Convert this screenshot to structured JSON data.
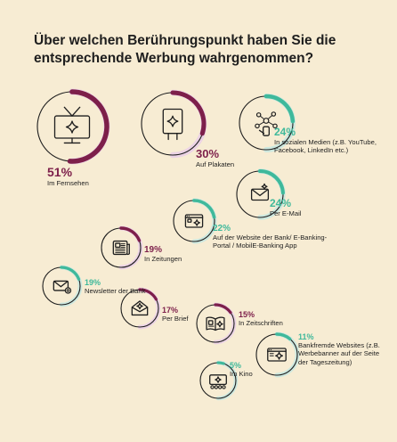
{
  "title": "Über welchen Berührungspunkt haben Sie die entsprechende Werbung wahrgenommen?",
  "colors": {
    "background": "#f7ecd3",
    "ink": "#1e1e1e",
    "purple": "#7d1f4a",
    "teal": "#3fb99b",
    "track_purple": "#ecd3e5",
    "track_teal": "#cde8df"
  },
  "chart_data": {
    "type": "bubble-gauge",
    "unit": "%",
    "items": [
      {
        "label": "Im Fernsehen",
        "value": 51,
        "display": "51%",
        "icon": "tv-icon",
        "accent": "purple"
      },
      {
        "label": "Auf Plakaten",
        "value": 30,
        "display": "30%",
        "icon": "billboard-icon",
        "accent": "purple"
      },
      {
        "label": "In sozialen Medien (z.B. YouTube, Facebook, LinkedIn etc.)",
        "value": 24,
        "display": "24%",
        "icon": "social-media-icon",
        "accent": "teal"
      },
      {
        "label": "Per E-Mail",
        "value": 24,
        "display": "24%",
        "icon": "email-icon",
        "accent": "teal"
      },
      {
        "label": "Auf der Website der Bank/ E-Banking-Portal / MobilE-Banking App",
        "value": 22,
        "display": "22%",
        "icon": "bank-website-icon",
        "accent": "teal"
      },
      {
        "label": "In Zeitungen",
        "value": 19,
        "display": "19%",
        "icon": "newspaper-icon",
        "accent": "purple"
      },
      {
        "label": "Newsletter der Bank",
        "value": 19,
        "display": "19%",
        "icon": "newsletter-icon",
        "accent": "teal"
      },
      {
        "label": "Per Brief",
        "value": 17,
        "display": "17%",
        "icon": "letter-icon",
        "accent": "purple"
      },
      {
        "label": "In Zeitschriften",
        "value": 15,
        "display": "15%",
        "icon": "magazine-icon",
        "accent": "purple"
      },
      {
        "label": "Bankfremde Websites (z.B. Werbebanner auf der Seite der Tageszeitung)",
        "value": 11,
        "display": "11%",
        "icon": "external-website-icon",
        "accent": "teal"
      },
      {
        "label": "Im Kino",
        "value": 5,
        "display": "5%",
        "icon": "cinema-icon",
        "accent": "teal"
      }
    ]
  }
}
